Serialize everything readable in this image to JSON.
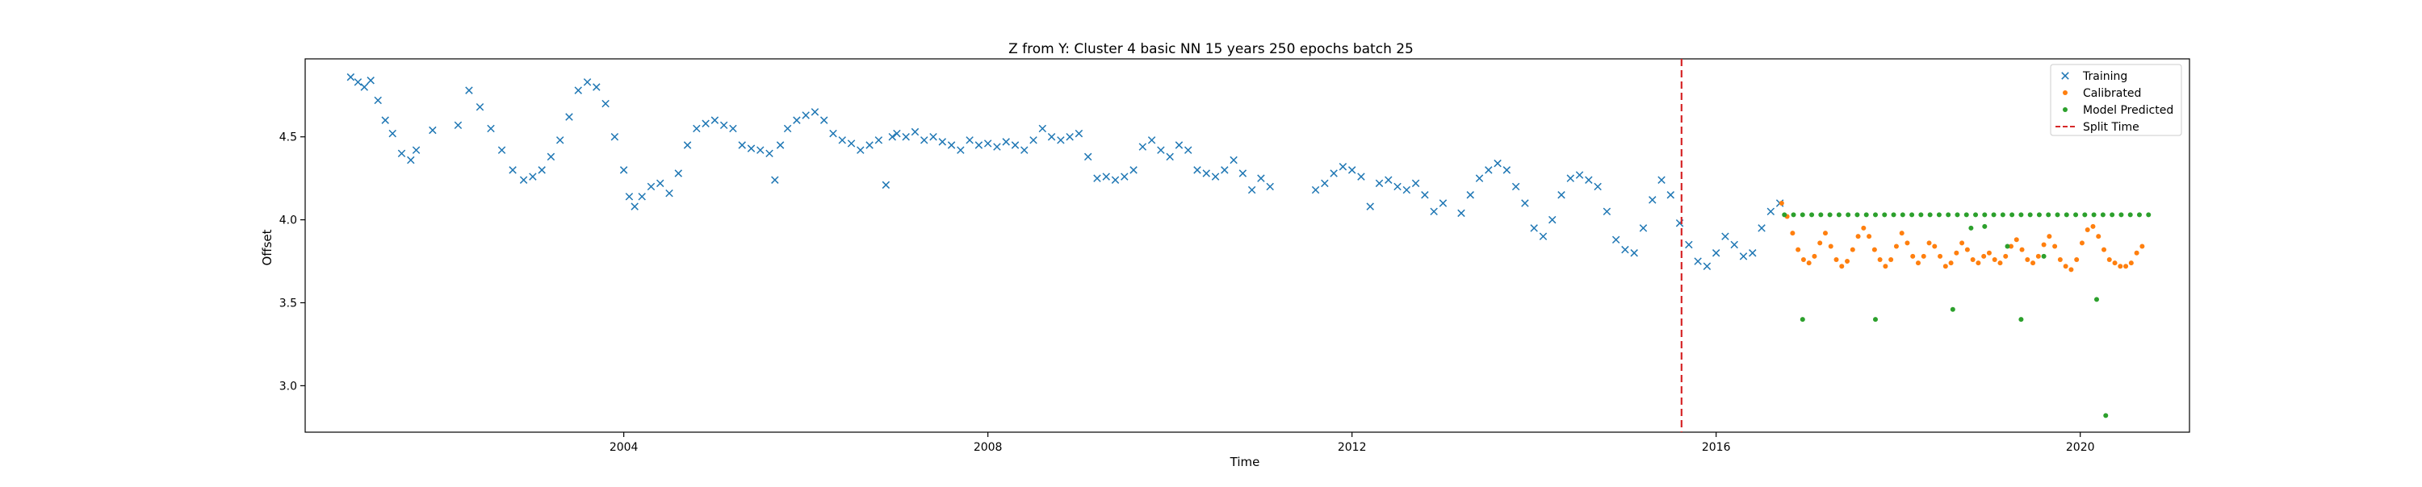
{
  "chart_data": {
    "type": "scatter",
    "title": "Z from Y: Cluster 4 basic NN 15 years 250 epochs batch 25",
    "xlabel": "Time",
    "ylabel": "Offset",
    "xlim": [
      2000.5,
      2021.2
    ],
    "ylim": [
      2.72,
      4.97
    ],
    "x_ticks": [
      2004,
      2008,
      2012,
      2016,
      2020
    ],
    "y_ticks": [
      3.0,
      3.5,
      4.0,
      4.5
    ],
    "grid": false,
    "legend_position": "top-right",
    "split_time": 2015.62,
    "series": [
      {
        "name": "Training",
        "marker": "x",
        "color": "#1f77b4",
        "points": [
          [
            2001.0,
            4.86
          ],
          [
            2001.08,
            4.83
          ],
          [
            2001.15,
            4.8
          ],
          [
            2001.22,
            4.84
          ],
          [
            2001.3,
            4.72
          ],
          [
            2001.38,
            4.6
          ],
          [
            2001.46,
            4.52
          ],
          [
            2001.56,
            4.4
          ],
          [
            2001.66,
            4.36
          ],
          [
            2001.72,
            4.42
          ],
          [
            2001.9,
            4.54
          ],
          [
            2002.18,
            4.57
          ],
          [
            2002.3,
            4.78
          ],
          [
            2002.42,
            4.68
          ],
          [
            2002.54,
            4.55
          ],
          [
            2002.66,
            4.42
          ],
          [
            2002.78,
            4.3
          ],
          [
            2002.9,
            4.24
          ],
          [
            2003.0,
            4.26
          ],
          [
            2003.1,
            4.3
          ],
          [
            2003.2,
            4.38
          ],
          [
            2003.3,
            4.48
          ],
          [
            2003.4,
            4.62
          ],
          [
            2003.5,
            4.78
          ],
          [
            2003.6,
            4.83
          ],
          [
            2003.7,
            4.8
          ],
          [
            2003.8,
            4.7
          ],
          [
            2003.9,
            4.5
          ],
          [
            2004.0,
            4.3
          ],
          [
            2004.06,
            4.14
          ],
          [
            2004.12,
            4.08
          ],
          [
            2004.2,
            4.14
          ],
          [
            2004.3,
            4.2
          ],
          [
            2004.4,
            4.22
          ],
          [
            2004.5,
            4.16
          ],
          [
            2004.6,
            4.28
          ],
          [
            2004.7,
            4.45
          ],
          [
            2004.8,
            4.55
          ],
          [
            2004.9,
            4.58
          ],
          [
            2005.0,
            4.6
          ],
          [
            2005.1,
            4.57
          ],
          [
            2005.2,
            4.55
          ],
          [
            2005.3,
            4.45
          ],
          [
            2005.4,
            4.43
          ],
          [
            2005.5,
            4.42
          ],
          [
            2005.6,
            4.4
          ],
          [
            2005.66,
            4.24
          ],
          [
            2005.72,
            4.45
          ],
          [
            2005.8,
            4.55
          ],
          [
            2005.9,
            4.6
          ],
          [
            2006.0,
            4.63
          ],
          [
            2006.1,
            4.65
          ],
          [
            2006.2,
            4.6
          ],
          [
            2006.3,
            4.52
          ],
          [
            2006.4,
            4.48
          ],
          [
            2006.5,
            4.46
          ],
          [
            2006.6,
            4.42
          ],
          [
            2006.7,
            4.45
          ],
          [
            2006.8,
            4.48
          ],
          [
            2006.88,
            4.21
          ],
          [
            2006.95,
            4.5
          ],
          [
            2007.0,
            4.52
          ],
          [
            2007.1,
            4.5
          ],
          [
            2007.2,
            4.53
          ],
          [
            2007.3,
            4.48
          ],
          [
            2007.4,
            4.5
          ],
          [
            2007.5,
            4.47
          ],
          [
            2007.6,
            4.45
          ],
          [
            2007.7,
            4.42
          ],
          [
            2007.8,
            4.48
          ],
          [
            2007.9,
            4.45
          ],
          [
            2008.0,
            4.46
          ],
          [
            2008.1,
            4.44
          ],
          [
            2008.2,
            4.47
          ],
          [
            2008.3,
            4.45
          ],
          [
            2008.4,
            4.42
          ],
          [
            2008.5,
            4.48
          ],
          [
            2008.6,
            4.55
          ],
          [
            2008.7,
            4.5
          ],
          [
            2008.8,
            4.48
          ],
          [
            2008.9,
            4.5
          ],
          [
            2009.0,
            4.52
          ],
          [
            2009.1,
            4.38
          ],
          [
            2009.2,
            4.25
          ],
          [
            2009.3,
            4.26
          ],
          [
            2009.4,
            4.24
          ],
          [
            2009.5,
            4.26
          ],
          [
            2009.6,
            4.3
          ],
          [
            2009.7,
            4.44
          ],
          [
            2009.8,
            4.48
          ],
          [
            2009.9,
            4.42
          ],
          [
            2010.0,
            4.38
          ],
          [
            2010.1,
            4.45
          ],
          [
            2010.2,
            4.42
          ],
          [
            2010.3,
            4.3
          ],
          [
            2010.4,
            4.28
          ],
          [
            2010.5,
            4.26
          ],
          [
            2010.6,
            4.3
          ],
          [
            2010.7,
            4.36
          ],
          [
            2010.8,
            4.28
          ],
          [
            2010.9,
            4.18
          ],
          [
            2011.0,
            4.25
          ],
          [
            2011.1,
            4.2
          ],
          [
            2011.6,
            4.18
          ],
          [
            2011.7,
            4.22
          ],
          [
            2011.8,
            4.28
          ],
          [
            2011.9,
            4.32
          ],
          [
            2012.0,
            4.3
          ],
          [
            2012.1,
            4.26
          ],
          [
            2012.2,
            4.08
          ],
          [
            2012.3,
            4.22
          ],
          [
            2012.4,
            4.24
          ],
          [
            2012.5,
            4.2
          ],
          [
            2012.6,
            4.18
          ],
          [
            2012.7,
            4.22
          ],
          [
            2012.8,
            4.15
          ],
          [
            2012.9,
            4.05
          ],
          [
            2013.0,
            4.1
          ],
          [
            2013.2,
            4.04
          ],
          [
            2013.3,
            4.15
          ],
          [
            2013.4,
            4.25
          ],
          [
            2013.5,
            4.3
          ],
          [
            2013.6,
            4.34
          ],
          [
            2013.7,
            4.3
          ],
          [
            2013.8,
            4.2
          ],
          [
            2013.9,
            4.1
          ],
          [
            2014.0,
            3.95
          ],
          [
            2014.1,
            3.9
          ],
          [
            2014.2,
            4.0
          ],
          [
            2014.3,
            4.15
          ],
          [
            2014.4,
            4.25
          ],
          [
            2014.5,
            4.27
          ],
          [
            2014.6,
            4.24
          ],
          [
            2014.7,
            4.2
          ],
          [
            2014.8,
            4.05
          ],
          [
            2014.9,
            3.88
          ],
          [
            2015.0,
            3.82
          ],
          [
            2015.1,
            3.8
          ],
          [
            2015.2,
            3.95
          ],
          [
            2015.3,
            4.12
          ],
          [
            2015.4,
            4.24
          ],
          [
            2015.5,
            4.15
          ],
          [
            2015.6,
            3.98
          ],
          [
            2015.7,
            3.85
          ],
          [
            2015.8,
            3.75
          ],
          [
            2015.9,
            3.72
          ],
          [
            2016.0,
            3.8
          ],
          [
            2016.1,
            3.9
          ],
          [
            2016.2,
            3.85
          ],
          [
            2016.3,
            3.78
          ],
          [
            2016.4,
            3.8
          ],
          [
            2016.5,
            3.95
          ],
          [
            2016.6,
            4.05
          ],
          [
            2016.7,
            4.1
          ]
        ]
      },
      {
        "name": "Calibrated",
        "marker": "dot",
        "color": "#ff7f0e",
        "points": [
          [
            2016.72,
            4.1
          ],
          [
            2016.78,
            4.02
          ],
          [
            2016.84,
            3.92
          ],
          [
            2016.9,
            3.82
          ],
          [
            2016.96,
            3.76
          ],
          [
            2017.02,
            3.74
          ],
          [
            2017.08,
            3.78
          ],
          [
            2017.14,
            3.86
          ],
          [
            2017.2,
            3.92
          ],
          [
            2017.26,
            3.84
          ],
          [
            2017.32,
            3.76
          ],
          [
            2017.38,
            3.72
          ],
          [
            2017.44,
            3.75
          ],
          [
            2017.5,
            3.82
          ],
          [
            2017.56,
            3.9
          ],
          [
            2017.62,
            3.95
          ],
          [
            2017.68,
            3.9
          ],
          [
            2017.74,
            3.82
          ],
          [
            2017.8,
            3.76
          ],
          [
            2017.86,
            3.72
          ],
          [
            2017.92,
            3.76
          ],
          [
            2017.98,
            3.84
          ],
          [
            2018.04,
            3.92
          ],
          [
            2018.1,
            3.86
          ],
          [
            2018.16,
            3.78
          ],
          [
            2018.22,
            3.74
          ],
          [
            2018.28,
            3.78
          ],
          [
            2018.34,
            3.86
          ],
          [
            2018.4,
            3.84
          ],
          [
            2018.46,
            3.78
          ],
          [
            2018.52,
            3.72
          ],
          [
            2018.58,
            3.74
          ],
          [
            2018.64,
            3.8
          ],
          [
            2018.7,
            3.86
          ],
          [
            2018.76,
            3.82
          ],
          [
            2018.82,
            3.76
          ],
          [
            2018.88,
            3.74
          ],
          [
            2018.94,
            3.78
          ],
          [
            2019.0,
            3.8
          ],
          [
            2019.06,
            3.76
          ],
          [
            2019.12,
            3.74
          ],
          [
            2019.18,
            3.78
          ],
          [
            2019.24,
            3.84
          ],
          [
            2019.3,
            3.88
          ],
          [
            2019.36,
            3.82
          ],
          [
            2019.42,
            3.76
          ],
          [
            2019.48,
            3.74
          ],
          [
            2019.54,
            3.78
          ],
          [
            2019.6,
            3.85
          ],
          [
            2019.66,
            3.9
          ],
          [
            2019.72,
            3.84
          ],
          [
            2019.78,
            3.76
          ],
          [
            2019.84,
            3.72
          ],
          [
            2019.9,
            3.7
          ],
          [
            2019.96,
            3.76
          ],
          [
            2020.02,
            3.86
          ],
          [
            2020.08,
            3.94
          ],
          [
            2020.14,
            3.96
          ],
          [
            2020.2,
            3.9
          ],
          [
            2020.26,
            3.82
          ],
          [
            2020.32,
            3.76
          ],
          [
            2020.38,
            3.74
          ],
          [
            2020.44,
            3.72
          ],
          [
            2020.5,
            3.72
          ],
          [
            2020.56,
            3.74
          ],
          [
            2020.62,
            3.8
          ],
          [
            2020.68,
            3.84
          ]
        ]
      },
      {
        "name": "Model Predicted",
        "marker": "dot",
        "color": "#2ca02c",
        "points": [
          [
            2016.75,
            4.03
          ],
          [
            2016.85,
            4.03
          ],
          [
            2016.95,
            4.03
          ],
          [
            2017.05,
            4.03
          ],
          [
            2017.15,
            4.03
          ],
          [
            2017.25,
            4.03
          ],
          [
            2017.35,
            4.03
          ],
          [
            2017.45,
            4.03
          ],
          [
            2017.55,
            4.03
          ],
          [
            2017.65,
            4.03
          ],
          [
            2017.75,
            4.03
          ],
          [
            2017.85,
            4.03
          ],
          [
            2017.95,
            4.03
          ],
          [
            2018.05,
            4.03
          ],
          [
            2018.15,
            4.03
          ],
          [
            2018.25,
            4.03
          ],
          [
            2018.35,
            4.03
          ],
          [
            2018.45,
            4.03
          ],
          [
            2018.55,
            4.03
          ],
          [
            2018.65,
            4.03
          ],
          [
            2018.75,
            4.03
          ],
          [
            2018.85,
            4.03
          ],
          [
            2018.95,
            4.03
          ],
          [
            2019.05,
            4.03
          ],
          [
            2019.15,
            4.03
          ],
          [
            2019.25,
            4.03
          ],
          [
            2019.35,
            4.03
          ],
          [
            2019.45,
            4.03
          ],
          [
            2019.55,
            4.03
          ],
          [
            2019.65,
            4.03
          ],
          [
            2019.75,
            4.03
          ],
          [
            2019.85,
            4.03
          ],
          [
            2019.95,
            4.03
          ],
          [
            2020.05,
            4.03
          ],
          [
            2020.15,
            4.03
          ],
          [
            2020.25,
            4.03
          ],
          [
            2020.35,
            4.03
          ],
          [
            2020.45,
            4.03
          ],
          [
            2020.55,
            4.03
          ],
          [
            2020.65,
            4.03
          ],
          [
            2020.75,
            4.03
          ],
          [
            2016.95,
            3.4
          ],
          [
            2017.75,
            3.4
          ],
          [
            2018.6,
            3.46
          ],
          [
            2019.35,
            3.4
          ],
          [
            2018.8,
            3.95
          ],
          [
            2019.2,
            3.84
          ],
          [
            2020.18,
            3.52
          ],
          [
            2020.28,
            2.82
          ],
          [
            2019.6,
            3.78
          ],
          [
            2018.95,
            3.96
          ]
        ]
      }
    ]
  }
}
